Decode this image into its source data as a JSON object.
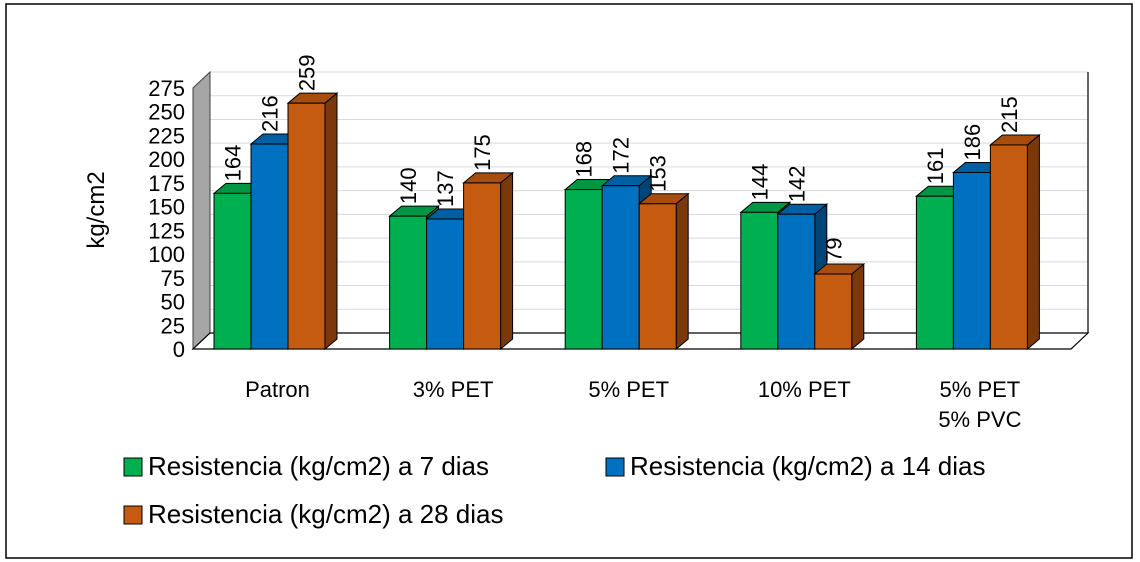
{
  "chart_data": {
    "type": "bar",
    "title": "",
    "xlabel": "",
    "ylabel": "kg/cm2",
    "ylim": [
      0,
      275
    ],
    "yticks": [
      0,
      25,
      50,
      75,
      100,
      125,
      150,
      175,
      200,
      225,
      250,
      275
    ],
    "grid": true,
    "legend_position": "bottom",
    "categories": [
      [
        "Patron"
      ],
      [
        "3% PET"
      ],
      [
        "5% PET"
      ],
      [
        "10% PET"
      ],
      [
        "5% PET",
        "5% PVC"
      ]
    ],
    "series": [
      {
        "name": "Resistencia (kg/cm2) a 7 dias",
        "color": "#00B050",
        "values": [
          164,
          140,
          168,
          144,
          161
        ]
      },
      {
        "name": "Resistencia (kg/cm2) a 14 dias",
        "color": "#0070C0",
        "values": [
          216,
          137,
          172,
          142,
          186
        ]
      },
      {
        "name": "Resistencia (kg/cm2) a 28 dias",
        "color": "#C55A11",
        "values": [
          259,
          175,
          153,
          79,
          215
        ]
      }
    ]
  }
}
